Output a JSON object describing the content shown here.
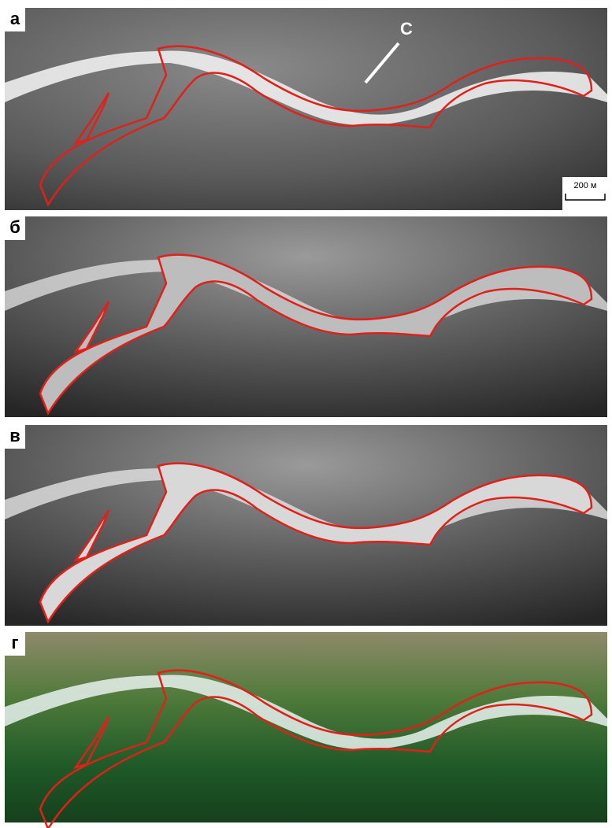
{
  "panels": [
    {
      "label": "а",
      "north": "С",
      "scale": "200 м"
    },
    {
      "label": "б"
    },
    {
      "label": "в"
    },
    {
      "label": "г"
    }
  ]
}
